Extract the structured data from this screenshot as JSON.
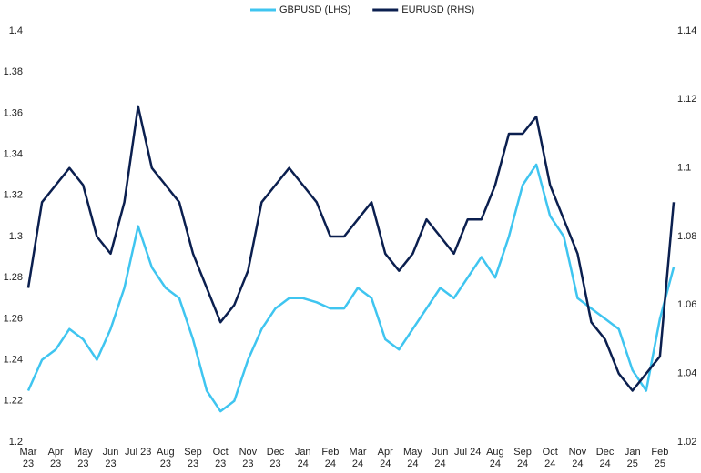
{
  "chart_data": {
    "type": "line",
    "categories": [
      "Mar 23",
      null,
      "Apr 23",
      null,
      "May 23",
      null,
      "Jun 23",
      null,
      "Jul 23",
      null,
      "Aug 23",
      null,
      "Sep 23",
      null,
      "Oct 23",
      null,
      "Nov 23",
      null,
      "Dec 23",
      null,
      "Jan 24",
      null,
      "Feb 24",
      null,
      "Mar 24",
      null,
      "Apr 24",
      null,
      "May 24",
      null,
      "Jun 24",
      null,
      "Jul 24",
      null,
      "Aug 24",
      null,
      "Sep 24",
      null,
      "Oct 24",
      null,
      "Nov 24",
      null,
      "Dec 24",
      null,
      "Jan 25",
      null,
      "Feb 25",
      null
    ],
    "series": [
      {
        "name": "GBPUSD (LHS)",
        "color": "#3fc5f0",
        "values": [
          1.225,
          1.24,
          1.245,
          1.255,
          1.25,
          1.24,
          1.255,
          1.275,
          1.305,
          1.285,
          1.275,
          1.27,
          1.25,
          1.225,
          1.215,
          1.22,
          1.24,
          1.255,
          1.265,
          1.27,
          1.27,
          1.268,
          1.265,
          1.265,
          1.275,
          1.27,
          1.25,
          1.245,
          1.255,
          1.265,
          1.275,
          1.27,
          1.28,
          1.29,
          1.28,
          1.3,
          1.325,
          1.335,
          1.31,
          1.3,
          1.27,
          1.265,
          1.26,
          1.255,
          1.235,
          1.225,
          1.26,
          1.285
        ]
      },
      {
        "name": "EURUSD (RHS)",
        "color": "#0b1f4f",
        "axis": "y2",
        "values": [
          1.065,
          1.09,
          1.095,
          1.1,
          1.095,
          1.08,
          1.075,
          1.09,
          1.118,
          1.1,
          1.095,
          1.09,
          1.075,
          1.065,
          1.055,
          1.06,
          1.07,
          1.09,
          1.095,
          1.1,
          1.095,
          1.09,
          1.08,
          1.08,
          1.085,
          1.09,
          1.075,
          1.07,
          1.075,
          1.085,
          1.08,
          1.075,
          1.085,
          1.085,
          1.095,
          1.11,
          1.11,
          1.115,
          1.095,
          1.085,
          1.075,
          1.055,
          1.05,
          1.04,
          1.035,
          1.04,
          1.045,
          1.09
        ]
      }
    ],
    "ylim": [
      1.2,
      1.4
    ],
    "yticks": [
      1.2,
      1.22,
      1.24,
      1.26,
      1.28,
      1.3,
      1.32,
      1.34,
      1.36,
      1.38,
      1.4
    ],
    "y2lim": [
      1.02,
      1.14
    ],
    "y2ticks": [
      1.02,
      1.04,
      1.06,
      1.08,
      1.1,
      1.12,
      1.14
    ],
    "grid": false,
    "legend": "top"
  }
}
